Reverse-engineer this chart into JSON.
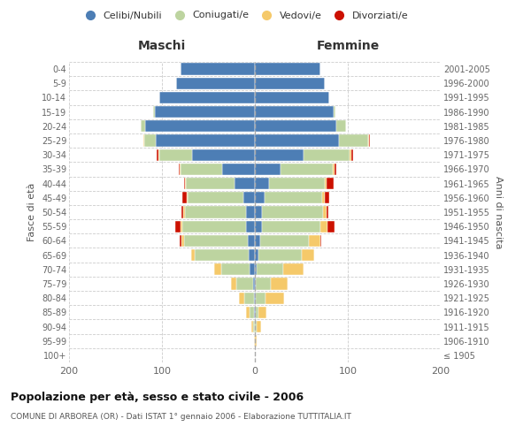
{
  "age_groups": [
    "100+",
    "95-99",
    "90-94",
    "85-89",
    "80-84",
    "75-79",
    "70-74",
    "65-69",
    "60-64",
    "55-59",
    "50-54",
    "45-49",
    "40-44",
    "35-39",
    "30-34",
    "25-29",
    "20-24",
    "15-19",
    "10-14",
    "5-9",
    "0-4"
  ],
  "birth_years": [
    "≤ 1905",
    "1906-1910",
    "1911-1915",
    "1916-1920",
    "1921-1925",
    "1926-1930",
    "1931-1935",
    "1936-1940",
    "1941-1945",
    "1946-1950",
    "1951-1955",
    "1956-1960",
    "1961-1965",
    "1966-1970",
    "1971-1975",
    "1976-1980",
    "1981-1985",
    "1986-1990",
    "1991-1995",
    "1996-2000",
    "2001-2005"
  ],
  "maschi_celibi": [
    0,
    0,
    0,
    1,
    1,
    2,
    6,
    7,
    8,
    10,
    10,
    12,
    22,
    35,
    68,
    107,
    118,
    108,
    103,
    85,
    80
  ],
  "maschi_coniugati": [
    0,
    0,
    2,
    5,
    10,
    18,
    30,
    58,
    68,
    68,
    65,
    60,
    52,
    45,
    35,
    12,
    5,
    2,
    0,
    0,
    0
  ],
  "maschi_vedovi": [
    0,
    1,
    2,
    4,
    6,
    6,
    8,
    4,
    3,
    2,
    2,
    1,
    1,
    1,
    1,
    1,
    0,
    0,
    0,
    0,
    0
  ],
  "maschi_divorziati": [
    0,
    0,
    0,
    0,
    0,
    0,
    0,
    0,
    2,
    6,
    2,
    5,
    1,
    1,
    2,
    0,
    0,
    0,
    0,
    0,
    0
  ],
  "femmine_celibi": [
    0,
    0,
    0,
    1,
    1,
    1,
    2,
    4,
    6,
    8,
    8,
    10,
    15,
    28,
    52,
    90,
    88,
    85,
    80,
    75,
    70
  ],
  "femmine_coniugati": [
    0,
    0,
    2,
    3,
    10,
    16,
    28,
    46,
    52,
    62,
    65,
    62,
    60,
    56,
    50,
    32,
    10,
    2,
    0,
    0,
    0
  ],
  "femmine_vedovi": [
    0,
    2,
    5,
    8,
    20,
    18,
    22,
    14,
    12,
    8,
    4,
    3,
    2,
    2,
    2,
    1,
    0,
    0,
    0,
    0,
    0
  ],
  "femmine_divorziati": [
    0,
    0,
    0,
    0,
    0,
    0,
    0,
    0,
    1,
    8,
    2,
    5,
    8,
    2,
    2,
    1,
    0,
    0,
    0,
    0,
    0
  ],
  "colors": {
    "celibi": "#4d7eb5",
    "coniugati": "#bdd4a0",
    "vedovi": "#f5c96a",
    "divorziati": "#cc1100"
  },
  "title": "Popolazione per età, sesso e stato civile - 2006",
  "subtitle": "COMUNE DI ARBOREA (OR) - Dati ISTAT 1° gennaio 2006 - Elaborazione TUTTITALIA.IT",
  "ylabel_left": "Fasce di età",
  "ylabel_right": "Anni di nascita",
  "xlabel_left": "Maschi",
  "xlabel_right": "Femmine",
  "xlim": 200,
  "background_color": "#ffffff",
  "legend_labels": [
    "Celibi/Nubili",
    "Coniugati/e",
    "Vedovi/e",
    "Divorziati/e"
  ]
}
